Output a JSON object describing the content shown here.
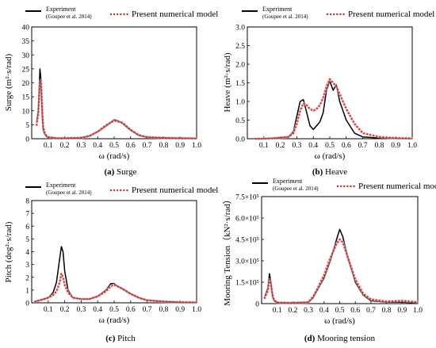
{
  "colors": {
    "experiment": "#000000",
    "model": "#b03a2e",
    "model_halo": "#f2a9b3",
    "axis": "#000000"
  },
  "legend": {
    "experiment_label": "Experiment",
    "experiment_ref": "(Goupee et al. 2014)",
    "model_label": "Present numerical model"
  },
  "chart_data": [
    {
      "type": "line",
      "caption_letter": "(a)",
      "caption_text": "Surge",
      "xlabel": "ω (rad/s)",
      "ylabel": "Surge (m²·s/rad)",
      "xlim": [
        0,
        1.0
      ],
      "ylim": [
        0,
        40
      ],
      "xticks": [
        "0.1",
        "0.2",
        "0.3",
        "0.4",
        "0.5",
        "0.6",
        "0.7",
        "0.8",
        "0.9",
        "1.0"
      ],
      "yticks": [
        "0",
        "5",
        "10",
        "15",
        "20",
        "25",
        "30",
        "35",
        "40"
      ],
      "legend_position": "top",
      "series": [
        {
          "name": "Experiment",
          "style": "solid",
          "x": [
            0.03,
            0.04,
            0.05,
            0.055,
            0.06,
            0.065,
            0.07,
            0.08,
            0.09,
            0.1,
            0.15,
            0.2,
            0.3,
            0.35,
            0.4,
            0.45,
            0.5,
            0.52,
            0.55,
            0.6,
            0.65,
            0.7,
            0.8,
            0.9,
            1.0
          ],
          "y": [
            6,
            10,
            25,
            22,
            14,
            7,
            3,
            1.5,
            0.8,
            0.5,
            0.2,
            0.2,
            0.3,
            1,
            2.5,
            4.5,
            6.8,
            6.5,
            5.5,
            3,
            1.2,
            0.5,
            0.3,
            0.2,
            0.1
          ]
        },
        {
          "name": "Present numerical model",
          "style": "dotted",
          "x": [
            0.03,
            0.04,
            0.05,
            0.055,
            0.06,
            0.065,
            0.07,
            0.08,
            0.09,
            0.1,
            0.15,
            0.2,
            0.3,
            0.35,
            0.4,
            0.45,
            0.5,
            0.55,
            0.6,
            0.65,
            0.7,
            0.8,
            0.9,
            1.0
          ],
          "y": [
            5,
            9,
            20,
            21,
            16,
            9,
            4,
            2,
            1,
            0.6,
            0.2,
            0.2,
            0.3,
            1,
            2.5,
            4.8,
            6.5,
            5.8,
            3.2,
            1.3,
            0.6,
            0.3,
            0.2,
            0.1
          ]
        }
      ]
    },
    {
      "type": "line",
      "caption_letter": "(b)",
      "caption_text": "Heave",
      "xlabel": "ω (rad/s)",
      "ylabel": "Heave (m²·s/rad)",
      "xlim": [
        0,
        1.0
      ],
      "ylim": [
        0,
        3.0
      ],
      "xticks": [
        "0.1",
        "0.2",
        "0.3",
        "0.4",
        "0.5",
        "0.6",
        "0.7",
        "0.8",
        "0.9",
        "1.0"
      ],
      "yticks": [
        "0.0",
        "0.5",
        "1.0",
        "1.5",
        "2.0",
        "2.5",
        "3.0"
      ],
      "legend_position": "top",
      "series": [
        {
          "name": "Experiment",
          "style": "solid",
          "x": [
            0.05,
            0.1,
            0.15,
            0.2,
            0.25,
            0.28,
            0.3,
            0.32,
            0.34,
            0.36,
            0.38,
            0.4,
            0.42,
            0.44,
            0.46,
            0.48,
            0.5,
            0.52,
            0.54,
            0.56,
            0.6,
            0.65,
            0.7,
            0.8,
            0.9,
            1.0
          ],
          "y": [
            0,
            0,
            0.01,
            0.03,
            0.05,
            0.2,
            0.6,
            1.0,
            1.05,
            0.7,
            0.35,
            0.25,
            0.35,
            0.45,
            0.7,
            1.3,
            1.55,
            1.3,
            1.45,
            1.0,
            0.5,
            0.15,
            0.05,
            0.02,
            0.01,
            0
          ]
        },
        {
          "name": "Present numerical model",
          "style": "dotted",
          "x": [
            0.05,
            0.1,
            0.15,
            0.2,
            0.25,
            0.28,
            0.3,
            0.32,
            0.34,
            0.36,
            0.38,
            0.4,
            0.42,
            0.44,
            0.46,
            0.48,
            0.5,
            0.52,
            0.54,
            0.56,
            0.6,
            0.65,
            0.7,
            0.8,
            0.9,
            1.0
          ],
          "y": [
            0,
            0,
            0.01,
            0.03,
            0.05,
            0.15,
            0.4,
            0.75,
            0.95,
            0.9,
            0.8,
            0.75,
            0.8,
            0.9,
            1.1,
            1.4,
            1.6,
            1.5,
            1.4,
            1.2,
            0.8,
            0.4,
            0.15,
            0.05,
            0.02,
            0.01
          ]
        }
      ]
    },
    {
      "type": "line",
      "caption_letter": "(c)",
      "caption_text": "Pitch",
      "xlabel": "ω (rad/s)",
      "ylabel": "Pitch (deg²·s/rad)",
      "xlim": [
        0,
        1.0
      ],
      "ylim": [
        0,
        8
      ],
      "xticks": [
        "0.1",
        "0.2",
        "0.3",
        "0.4",
        "0.5",
        "0.6",
        "0.7",
        "0.8",
        "0.9",
        "1.0"
      ],
      "yticks": [
        "0",
        "1",
        "2",
        "3",
        "4",
        "5",
        "6",
        "7",
        "8"
      ],
      "legend_position": "top",
      "series": [
        {
          "name": "Experiment",
          "style": "solid",
          "x": [
            0.02,
            0.05,
            0.1,
            0.13,
            0.15,
            0.17,
            0.18,
            0.19,
            0.2,
            0.22,
            0.25,
            0.3,
            0.35,
            0.4,
            0.45,
            0.48,
            0.5,
            0.52,
            0.55,
            0.6,
            0.65,
            0.7,
            0.8,
            0.9,
            1.0
          ],
          "y": [
            0.1,
            0.2,
            0.4,
            0.8,
            1.6,
            3.5,
            4.4,
            4.0,
            2.5,
            1.0,
            0.4,
            0.3,
            0.3,
            0.5,
            1.0,
            1.5,
            1.5,
            1.3,
            1.1,
            0.7,
            0.4,
            0.2,
            0.1,
            0.05,
            0.03
          ]
        },
        {
          "name": "Present numerical model",
          "style": "dotted",
          "x": [
            0.02,
            0.05,
            0.1,
            0.13,
            0.15,
            0.17,
            0.18,
            0.19,
            0.2,
            0.22,
            0.25,
            0.3,
            0.35,
            0.4,
            0.45,
            0.48,
            0.5,
            0.52,
            0.55,
            0.6,
            0.65,
            0.7,
            0.8,
            0.9,
            1.0
          ],
          "y": [
            0.1,
            0.2,
            0.4,
            0.6,
            0.9,
            1.6,
            2.3,
            2.0,
            1.4,
            0.8,
            0.4,
            0.3,
            0.3,
            0.5,
            0.9,
            1.3,
            1.4,
            1.3,
            1.1,
            0.7,
            0.4,
            0.2,
            0.1,
            0.05,
            0.03
          ]
        }
      ]
    },
    {
      "type": "line",
      "caption_letter": "(d)",
      "caption_text": "Mooring tension",
      "xlabel": "ω (rad/s)",
      "ylabel": "Mooring Tension（kN²·s/rad）",
      "xlim": [
        0,
        1.0
      ],
      "ylim": [
        0,
        750000
      ],
      "xticks": [
        "0.1",
        "0.2",
        "0.3",
        "0.4",
        "0.5",
        "0.6",
        "0.7",
        "0.8",
        "0.9",
        "1.0"
      ],
      "yticks": [
        "0",
        "1.5×10⁵",
        "3.0×10⁵",
        "4.5×10⁵",
        "6.0×10⁵",
        "7.5×10⁵"
      ],
      "legend_position": "top",
      "series": [
        {
          "name": "Experiment",
          "style": "solid",
          "x": [
            0.02,
            0.04,
            0.05,
            0.06,
            0.07,
            0.08,
            0.1,
            0.2,
            0.3,
            0.33,
            0.36,
            0.4,
            0.44,
            0.48,
            0.5,
            0.52,
            0.55,
            0.6,
            0.65,
            0.7,
            0.8,
            0.9,
            1.0
          ],
          "y": [
            50000,
            110000,
            210000,
            150000,
            50000,
            20000,
            5000,
            5000,
            10000,
            40000,
            100000,
            180000,
            300000,
            450000,
            520000,
            470000,
            330000,
            150000,
            60000,
            20000,
            10000,
            10000,
            5000
          ]
        },
        {
          "name": "Present numerical model",
          "style": "dotted",
          "x": [
            0.02,
            0.04,
            0.05,
            0.06,
            0.07,
            0.08,
            0.1,
            0.2,
            0.3,
            0.33,
            0.36,
            0.4,
            0.44,
            0.48,
            0.5,
            0.52,
            0.55,
            0.6,
            0.65,
            0.7,
            0.8,
            0.9,
            1.0
          ],
          "y": [
            40000,
            90000,
            170000,
            130000,
            60000,
            25000,
            8000,
            5000,
            10000,
            50000,
            110000,
            200000,
            320000,
            420000,
            450000,
            430000,
            330000,
            170000,
            70000,
            30000,
            15000,
            20000,
            10000
          ]
        }
      ]
    }
  ]
}
